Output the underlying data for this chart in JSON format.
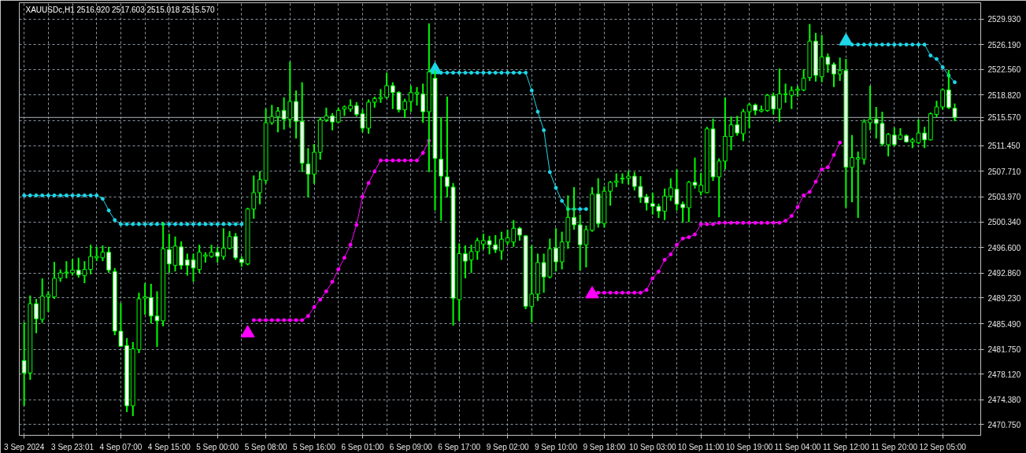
{
  "chart_data": {
    "type": "candlestick",
    "title": "XAUUSDc,H1  2516.920 2517.603 2515.018 2515.570",
    "categories": [
      "3 Sep 2024",
      null,
      null,
      null,
      null,
      null,
      null,
      null,
      "3 Sep 23:01",
      null,
      null,
      null,
      null,
      null,
      null,
      null,
      "4 Sep 07:00",
      null,
      null,
      null,
      null,
      null,
      null,
      null,
      "4 Sep 15:00",
      null,
      null,
      null,
      null,
      null,
      null,
      null,
      "5 Sep 00:00",
      null,
      null,
      null,
      null,
      null,
      null,
      null,
      "5 Sep 08:00",
      null,
      null,
      null,
      null,
      null,
      null,
      null,
      "5 Sep 16:00",
      null,
      null,
      null,
      null,
      null,
      null,
      null,
      "6 Sep 01:00",
      null,
      null,
      null,
      null,
      null,
      null,
      null,
      "6 Sep 09:00",
      null,
      null,
      null,
      null,
      null,
      null,
      null,
      "6 Sep 17:00",
      null,
      null,
      null,
      null,
      null,
      null,
      null,
      "9 Sep 02:00",
      null,
      null,
      null,
      null,
      null,
      null,
      null,
      "9 Sep 10:00",
      null,
      null,
      null,
      null,
      null,
      null,
      null,
      "9 Sep 18:00",
      null,
      null,
      null,
      null,
      null,
      null,
      null,
      "10 Sep 03:00",
      null,
      null,
      null,
      null,
      null,
      null,
      null,
      "10 Sep 11:00",
      null,
      null,
      null,
      null,
      null,
      null,
      null,
      "10 Sep 19:00",
      null,
      null,
      null,
      null,
      null,
      null,
      null,
      "11 Sep 04:00",
      null,
      null,
      null,
      null,
      null,
      null,
      null,
      "11 Sep 12:00",
      null,
      null,
      null,
      null,
      null,
      null,
      null,
      "11 Sep 20:00",
      null,
      null,
      null,
      null,
      null,
      null,
      null,
      "12 Sep 05:00",
      null,
      null
    ],
    "color": "#00ff00",
    "ohlc": [
      [
        2480.1,
        2485.7,
        2473.5,
        2478.3
      ],
      [
        2478.3,
        2489.6,
        2477.3,
        2488.4
      ],
      [
        2488.4,
        2489.1,
        2484.1,
        2486.2
      ],
      [
        2486.1,
        2492.1,
        2485.6,
        2489.5
      ],
      [
        2489.4,
        2490.2,
        2487.2,
        2489.7
      ],
      [
        2489.4,
        2494.5,
        2489.1,
        2492.1
      ],
      [
        2492.1,
        2493.4,
        2491.6,
        2492.9
      ],
      [
        2492.9,
        2494.6,
        2492.1,
        2493.0
      ],
      [
        2492.9,
        2494.9,
        2492.5,
        2493.3
      ],
      [
        2493.3,
        2495.1,
        2492.2,
        2492.6
      ],
      [
        2492.5,
        2494.6,
        2491.4,
        2493.4
      ],
      [
        2493.4,
        2497.0,
        2492.7,
        2495.3
      ],
      [
        2495.1,
        2496.7,
        2494.6,
        2495.3
      ],
      [
        2495.1,
        2496.9,
        2494.6,
        2495.9
      ],
      [
        2495.9,
        2496.7,
        2492.9,
        2493.3
      ],
      [
        2493.1,
        2493.6,
        2483.8,
        2484.4
      ],
      [
        2484.4,
        2488.5,
        2482.1,
        2482.2
      ],
      [
        2482.3,
        2483.4,
        2472.6,
        2473.5
      ],
      [
        2473.5,
        2482.8,
        2472.0,
        2481.8
      ],
      [
        2481.7,
        2490.0,
        2481.2,
        2489.1
      ],
      [
        2489.2,
        2491.4,
        2486.8,
        2489.4
      ],
      [
        2489.3,
        2491.3,
        2485.5,
        2486.6
      ],
      [
        2486.6,
        2490.2,
        2482.1,
        2485.9
      ],
      [
        2485.9,
        2500.3,
        2485.1,
        2496.4
      ],
      [
        2496.3,
        2498.6,
        2492.9,
        2494.2
      ],
      [
        2494.0,
        2498.2,
        2493.1,
        2496.8
      ],
      [
        2496.7,
        2497.5,
        2493.4,
        2494.0
      ],
      [
        2494.8,
        2495.7,
        2492.5,
        2494.0
      ],
      [
        2494.8,
        2495.7,
        2491.6,
        2493.6
      ],
      [
        2493.4,
        2497.0,
        2492.9,
        2495.9
      ],
      [
        2495.3,
        2495.9,
        2494.4,
        2495.5
      ],
      [
        2495.3,
        2497.0,
        2495.1,
        2495.9
      ],
      [
        2495.9,
        2496.7,
        2494.4,
        2495.3
      ],
      [
        2495.3,
        2499.4,
        2494.8,
        2496.5
      ],
      [
        2496.5,
        2499.0,
        2496.3,
        2498.2
      ],
      [
        2498.2,
        2498.7,
        2494.8,
        2495.1
      ],
      [
        2494.9,
        2495.3,
        2493.8,
        2494.4
      ],
      [
        2494.2,
        2502.4,
        2494.0,
        2502.2
      ],
      [
        2502.2,
        2507.1,
        2500.8,
        2504.6
      ],
      [
        2504.6,
        2507.7,
        2502.9,
        2506.5
      ],
      [
        2506.4,
        2516.9,
        2505.9,
        2514.8
      ],
      [
        2514.8,
        2517.4,
        2514.5,
        2515.7
      ],
      [
        2515.7,
        2517.1,
        2513.4,
        2516.5
      ],
      [
        2516.6,
        2518.5,
        2513.8,
        2515.3
      ],
      [
        2515.3,
        2523.7,
        2514.1,
        2517.9
      ],
      [
        2517.9,
        2519.5,
        2512.5,
        2515.0
      ],
      [
        2515.0,
        2520.7,
        2507.6,
        2508.9
      ],
      [
        2508.8,
        2511.1,
        2503.9,
        2507.3
      ],
      [
        2507.3,
        2511.7,
        2505.9,
        2510.5
      ],
      [
        2510.5,
        2515.6,
        2509.4,
        2515.2
      ],
      [
        2515.2,
        2517.0,
        2514.9,
        2515.8
      ],
      [
        2515.8,
        2516.2,
        2513.7,
        2514.9
      ],
      [
        2514.9,
        2517.0,
        2514.8,
        2516.6
      ],
      [
        2516.8,
        2517.3,
        2515.8,
        2517.1
      ],
      [
        2516.8,
        2518.2,
        2516.4,
        2517.3
      ],
      [
        2517.3,
        2517.8,
        2515.7,
        2516.0
      ],
      [
        2516.1,
        2516.8,
        2513.4,
        2514.0
      ],
      [
        2514.0,
        2518.2,
        2513.2,
        2517.8
      ],
      [
        2517.8,
        2518.6,
        2517.0,
        2518.3
      ],
      [
        2518.3,
        2519.7,
        2517.7,
        2518.5
      ],
      [
        2518.5,
        2522.1,
        2518.3,
        2520.2
      ],
      [
        2520.2,
        2520.7,
        2516.8,
        2519.2
      ],
      [
        2519.2,
        2519.4,
        2516.3,
        2516.7
      ],
      [
        2516.7,
        2518.3,
        2515.5,
        2517.9
      ],
      [
        2517.9,
        2520.2,
        2516.4,
        2519.2
      ],
      [
        2519.0,
        2520.0,
        2517.3,
        2519.2
      ],
      [
        2519.0,
        2520.5,
        2514.8,
        2516.4
      ],
      [
        2516.4,
        2529.3,
        2507.6,
        2522.2
      ],
      [
        2521.3,
        2522.4,
        2502.0,
        2509.6
      ],
      [
        2509.5,
        2515.6,
        2500.5,
        2507.0
      ],
      [
        2506.9,
        2518.6,
        2503.9,
        2505.5
      ],
      [
        2505.4,
        2506.0,
        2485.2,
        2489.2
      ],
      [
        2489.0,
        2497.2,
        2485.9,
        2495.7
      ],
      [
        2495.7,
        2496.9,
        2492.1,
        2494.6
      ],
      [
        2494.8,
        2497.0,
        2492.9,
        2496.0
      ],
      [
        2496.0,
        2498.0,
        2494.8,
        2497.6
      ],
      [
        2497.1,
        2498.6,
        2496.3,
        2497.6
      ],
      [
        2497.6,
        2498.3,
        2495.6,
        2497.0
      ],
      [
        2497.0,
        2498.4,
        2495.8,
        2496.3
      ],
      [
        2496.1,
        2498.9,
        2494.8,
        2497.8
      ],
      [
        2497.4,
        2499.2,
        2497.0,
        2498.0
      ],
      [
        2497.4,
        2500.6,
        2496.7,
        2499.4
      ],
      [
        2499.4,
        2499.6,
        2497.6,
        2498.4
      ],
      [
        2498.3,
        2498.4,
        2487.6,
        2488.0
      ],
      [
        2488.0,
        2496.9,
        2485.7,
        2489.8
      ],
      [
        2489.8,
        2495.7,
        2488.8,
        2494.4
      ],
      [
        2494.4,
        2495.7,
        2490.0,
        2492.3
      ],
      [
        2492.3,
        2497.9,
        2492.1,
        2496.4
      ],
      [
        2496.5,
        2499.4,
        2493.1,
        2494.5
      ],
      [
        2494.5,
        2498.9,
        2493.4,
        2497.4
      ],
      [
        2497.4,
        2504.2,
        2496.4,
        2501.0
      ],
      [
        2501.0,
        2505.4,
        2499.2,
        2499.9
      ],
      [
        2499.9,
        2501.4,
        2493.2,
        2497.0
      ],
      [
        2497.0,
        2499.8,
        2493.7,
        2499.2
      ],
      [
        2499.1,
        2505.4,
        2498.9,
        2504.4
      ],
      [
        2504.4,
        2506.7,
        2499.5,
        2500.1
      ],
      [
        2500.1,
        2505.5,
        2499.5,
        2504.8
      ],
      [
        2504.8,
        2506.3,
        2502.7,
        2506.1
      ],
      [
        2506.1,
        2507.4,
        2505.4,
        2506.3
      ],
      [
        2506.6,
        2507.4,
        2505.9,
        2506.7
      ],
      [
        2506.7,
        2507.8,
        2505.8,
        2507.0
      ],
      [
        2507.0,
        2507.6,
        2504.9,
        2505.5
      ],
      [
        2505.5,
        2507.0,
        2503.1,
        2503.9
      ],
      [
        2504.0,
        2504.4,
        2502.0,
        2503.1
      ],
      [
        2503.0,
        2504.6,
        2501.4,
        2502.6
      ],
      [
        2502.6,
        2503.0,
        2500.9,
        2501.9
      ],
      [
        2501.9,
        2505.2,
        2500.6,
        2504.1
      ],
      [
        2504.1,
        2506.7,
        2503.4,
        2505.3
      ],
      [
        2505.1,
        2508.0,
        2502.0,
        2502.9
      ],
      [
        2502.9,
        2503.3,
        2500.2,
        2502.4
      ],
      [
        2502.4,
        2506.3,
        2500.3,
        2506.1
      ],
      [
        2506.1,
        2509.7,
        2505.2,
        2505.7
      ],
      [
        2504.7,
        2507.5,
        2504.2,
        2505.7
      ],
      [
        2504.6,
        2514.2,
        2504.5,
        2513.9
      ],
      [
        2513.9,
        2515.4,
        2506.3,
        2506.9
      ],
      [
        2506.9,
        2509.6,
        2501.0,
        2509.2
      ],
      [
        2509.2,
        2518.5,
        2508.0,
        2512.8
      ],
      [
        2512.8,
        2515.7,
        2510.8,
        2514.5
      ],
      [
        2514.5,
        2515.8,
        2512.9,
        2513.3
      ],
      [
        2513.2,
        2516.8,
        2512.1,
        2516.4
      ],
      [
        2516.4,
        2517.7,
        2514.0,
        2517.4
      ],
      [
        2517.4,
        2517.6,
        2515.9,
        2516.6
      ],
      [
        2516.5,
        2517.3,
        2516.3,
        2516.7
      ],
      [
        2516.6,
        2519.0,
        2516.4,
        2518.8
      ],
      [
        2518.7,
        2519.2,
        2516.0,
        2516.8
      ],
      [
        2516.8,
        2522.7,
        2514.9,
        2519.0
      ],
      [
        2518.9,
        2520.5,
        2517.7,
        2519.0
      ],
      [
        2518.8,
        2520.1,
        2516.8,
        2519.5
      ],
      [
        2519.5,
        2520.2,
        2518.6,
        2519.7
      ],
      [
        2519.6,
        2522.6,
        2519.4,
        2521.3
      ],
      [
        2521.4,
        2529.2,
        2520.9,
        2526.7
      ],
      [
        2526.7,
        2527.9,
        2520.8,
        2521.7
      ],
      [
        2521.5,
        2527.6,
        2520.7,
        2524.4
      ],
      [
        2524.4,
        2524.9,
        2522.1,
        2523.3
      ],
      [
        2523.3,
        2523.6,
        2520.0,
        2521.9
      ],
      [
        2521.9,
        2524.3,
        2520.9,
        2522.4
      ],
      [
        2522.4,
        2524.1,
        2502.4,
        2508.3
      ],
      [
        2508.3,
        2513.0,
        2503.2,
        2509.7
      ],
      [
        2509.5,
        2510.6,
        2500.9,
        2509.7
      ],
      [
        2509.5,
        2515.3,
        2508.7,
        2514.9
      ],
      [
        2514.8,
        2520.2,
        2513.7,
        2515.3
      ],
      [
        2515.3,
        2517.1,
        2512.5,
        2514.7
      ],
      [
        2514.7,
        2516.4,
        2511.4,
        2511.7
      ],
      [
        2511.6,
        2513.3,
        2509.9,
        2513.1
      ],
      [
        2513.0,
        2514.1,
        2511.4,
        2511.6
      ],
      [
        2512.4,
        2514.0,
        2512.3,
        2513.0
      ],
      [
        2512.9,
        2513.1,
        2511.9,
        2512.0
      ],
      [
        2512.0,
        2512.6,
        2511.1,
        2512.3
      ],
      [
        2511.9,
        2515.3,
        2511.7,
        2513.3
      ],
      [
        2513.3,
        2514.2,
        2511.1,
        2512.3
      ],
      [
        2512.3,
        2516.3,
        2512.2,
        2516.1
      ],
      [
        2516.0,
        2518.0,
        2515.6,
        2517.1
      ],
      [
        2517.1,
        2519.8,
        2516.7,
        2519.6
      ],
      [
        2519.6,
        2522.5,
        2516.8,
        2517.0
      ],
      [
        2516.92,
        2517.603,
        2515.018,
        2515.57
      ]
    ],
    "series": [
      {
        "type": "line",
        "color": "#1ed6e8",
        "marker": "circle",
        "values": [
          2504.2,
          2504.2,
          2504.2,
          2504.2,
          2504.2,
          2504.2,
          2504.2,
          2504.2,
          2504.2,
          2504.2,
          2504.2,
          2504.2,
          2504.2,
          2503.7,
          2502.0,
          2500.6,
          2500.0,
          2500.0,
          2500.0,
          2500.0,
          2500.0,
          2500.0,
          2500.0,
          2500.0,
          2500.0,
          2500.0,
          2500.0,
          2500.0,
          2500.0,
          2500.0,
          2500.0,
          2500.0,
          2500.0,
          2500.0,
          2500.0,
          2500.0,
          2500.0,
          null,
          null,
          null,
          null,
          null,
          null,
          null,
          null,
          null,
          null,
          null,
          null,
          null,
          null,
          null,
          null,
          null,
          null,
          null,
          null,
          null,
          null,
          null,
          null,
          null,
          null,
          null,
          null,
          null,
          null,
          null,
          null,
          2522.1,
          2522.1,
          2522.1,
          2522.1,
          2522.1,
          2522.1,
          2522.1,
          2522.1,
          2522.1,
          2522.1,
          2522.1,
          2522.1,
          2522.1,
          2522.1,
          2522.1,
          2519.5,
          2516.4,
          2513.7,
          2507.6,
          2505.3,
          2503.4,
          2502.2,
          2502.2,
          2502.2,
          2502.2,
          null,
          null,
          null,
          null,
          null,
          null,
          null,
          null,
          null,
          null,
          null,
          null,
          null,
          null,
          null,
          null,
          null,
          null,
          null,
          null,
          null,
          null,
          null,
          null,
          null,
          null,
          null,
          null,
          null,
          null,
          null,
          null,
          null,
          null,
          null,
          null,
          null,
          null,
          null,
          null,
          null,
          null,
          null,
          2526.2,
          2526.2,
          2526.2,
          2526.2,
          2526.2,
          2526.2,
          2526.2,
          2526.2,
          2526.2,
          2526.2,
          2526.2,
          2526.2,
          2526.2,
          2524.6,
          2524.1,
          2522.9,
          2521.7,
          2520.7
        ]
      },
      {
        "type": "line",
        "color": "#ff00ff",
        "marker": "circle",
        "values": [
          null,
          null,
          null,
          null,
          null,
          null,
          null,
          null,
          null,
          null,
          null,
          null,
          null,
          null,
          null,
          null,
          null,
          null,
          null,
          null,
          null,
          null,
          null,
          null,
          null,
          null,
          null,
          null,
          null,
          null,
          null,
          null,
          null,
          null,
          null,
          null,
          null,
          null,
          2486.0,
          2486.0,
          2486.0,
          2486.0,
          2486.0,
          2486.0,
          2486.0,
          2486.0,
          2486.0,
          2486.6,
          2487.9,
          2489.0,
          2490.2,
          2491.6,
          2493.4,
          2495.1,
          2497.0,
          2499.9,
          2504.0,
          2506.0,
          2507.7,
          2509.3,
          2509.3,
          2509.3,
          2509.3,
          2509.3,
          2509.3,
          2509.3,
          2510.4,
          2512.2,
          null,
          null,
          null,
          null,
          null,
          null,
          null,
          null,
          null,
          null,
          null,
          null,
          null,
          null,
          null,
          null,
          null,
          null,
          null,
          null,
          null,
          null,
          null,
          null,
          null,
          null,
          null,
          2490.0,
          2490.0,
          2490.0,
          2490.0,
          2490.0,
          2490.0,
          2490.0,
          2490.0,
          2490.4,
          2492.1,
          2493.1,
          2494.8,
          2495.6,
          2497.0,
          2497.9,
          2498.1,
          2498.5,
          2500.0,
          2500.0,
          2500.0,
          2500.2,
          2500.2,
          2500.2,
          2500.2,
          2500.2,
          2500.2,
          2500.2,
          2500.2,
          2500.2,
          2500.2,
          2500.2,
          2500.5,
          2501.2,
          2502.5,
          2504.2,
          2504.7,
          2506.2,
          2508.0,
          2508.3,
          2510.1,
          2511.9,
          null,
          null,
          null,
          null,
          null,
          null,
          null,
          null,
          null,
          null,
          null,
          null,
          null,
          null,
          null,
          null,
          null,
          null,
          null
        ]
      },
      {
        "type": "scatter",
        "color": "#ff00ff",
        "marker": "triangle",
        "values": [
          null,
          null,
          null,
          null,
          null,
          null,
          null,
          null,
          null,
          null,
          null,
          null,
          null,
          null,
          null,
          null,
          null,
          null,
          null,
          null,
          null,
          null,
          null,
          null,
          null,
          null,
          null,
          null,
          null,
          null,
          null,
          null,
          null,
          null,
          null,
          null,
          null,
          2484.1,
          null,
          null,
          null,
          null,
          null,
          null,
          null,
          null,
          null,
          null,
          null,
          null,
          null,
          null,
          null,
          null,
          null,
          null,
          null,
          null,
          null,
          null,
          null,
          null,
          null,
          null,
          null,
          null,
          null,
          null,
          null,
          null,
          null,
          null,
          null,
          null,
          null,
          null,
          null,
          null,
          null,
          null,
          null,
          null,
          null,
          null,
          null,
          null,
          null,
          null,
          null,
          null,
          null,
          null,
          null,
          null,
          2489.8,
          null,
          null,
          null,
          null,
          null,
          null,
          null,
          null,
          null,
          null,
          null,
          null,
          null,
          null,
          null,
          null,
          null,
          null,
          null,
          null,
          null,
          null,
          null,
          null,
          null,
          null,
          null,
          null,
          null,
          null,
          null,
          null,
          null,
          null,
          null,
          null,
          null,
          null,
          null,
          null,
          null,
          null,
          null,
          null,
          null,
          null,
          null,
          null,
          null,
          null,
          null,
          null,
          null,
          null,
          null,
          null,
          null,
          null,
          null,
          null
        ]
      },
      {
        "type": "scatter",
        "color": "#1ed6e8",
        "marker": "triangle",
        "values": [
          null,
          null,
          null,
          null,
          null,
          null,
          null,
          null,
          null,
          null,
          null,
          null,
          null,
          null,
          null,
          null,
          null,
          null,
          null,
          null,
          null,
          null,
          null,
          null,
          null,
          null,
          null,
          null,
          null,
          null,
          null,
          null,
          null,
          null,
          null,
          null,
          null,
          null,
          null,
          null,
          null,
          null,
          null,
          null,
          null,
          null,
          null,
          null,
          null,
          null,
          null,
          null,
          null,
          null,
          null,
          null,
          null,
          null,
          null,
          null,
          null,
          null,
          null,
          null,
          null,
          null,
          null,
          null,
          2522.5,
          null,
          null,
          null,
          null,
          null,
          null,
          null,
          null,
          null,
          null,
          null,
          null,
          null,
          null,
          null,
          null,
          null,
          null,
          null,
          null,
          null,
          null,
          null,
          null,
          null,
          null,
          null,
          null,
          null,
          null,
          null,
          null,
          null,
          null,
          null,
          null,
          null,
          null,
          null,
          null,
          null,
          null,
          null,
          null,
          null,
          null,
          null,
          null,
          null,
          null,
          null,
          null,
          null,
          null,
          null,
          null,
          null,
          null,
          null,
          null,
          null,
          null,
          null,
          null,
          null,
          null,
          null,
          2526.7,
          null,
          null,
          null,
          null,
          null,
          null,
          null,
          null,
          null,
          null,
          null,
          null,
          null,
          null,
          null,
          null,
          null,
          null
        ]
      }
    ],
    "ref_lines": [
      {
        "axis": "y",
        "value": 2515.57,
        "label": "2515.570",
        "color": "#a8b0b8"
      }
    ],
    "ylim": [
      2469.2,
      2532.3
    ],
    "yticks": [
      {
        "value": 2470.75,
        "label": "2470.750"
      },
      {
        "value": 2474.38,
        "label": "2474.380"
      },
      {
        "value": 2478.12,
        "label": "2478.120"
      },
      {
        "value": 2481.75,
        "label": "2481.750"
      },
      {
        "value": 2485.49,
        "label": "2485.490"
      },
      {
        "value": 2489.23,
        "label": "2489.230"
      },
      {
        "value": 2492.86,
        "label": "2492.860"
      },
      {
        "value": 2496.6,
        "label": "2496.600"
      },
      {
        "value": 2500.34,
        "label": "2500.340"
      },
      {
        "value": 2503.97,
        "label": "2503.970"
      },
      {
        "value": 2507.71,
        "label": "2507.710"
      },
      {
        "value": 2511.45,
        "label": "2511.450"
      },
      {
        "value": 2515.08,
        "label": null
      },
      {
        "value": 2518.82,
        "label": "2518.820"
      },
      {
        "value": 2522.56,
        "label": "2522.560"
      },
      {
        "value": 2526.19,
        "label": "2526.190"
      },
      {
        "value": 2529.93,
        "label": "2529.930"
      }
    ],
    "grid": true
  }
}
